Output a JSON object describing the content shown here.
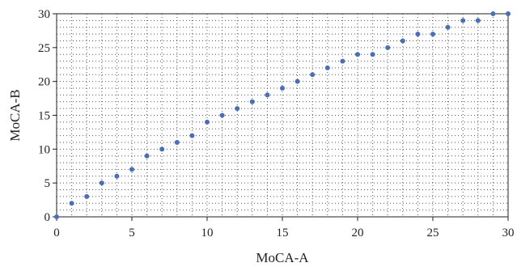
{
  "chart_data": {
    "type": "scatter",
    "xlabel": "MoCA-A",
    "ylabel": "MoCA-B",
    "xlim": [
      0,
      30
    ],
    "ylim": [
      0,
      30
    ],
    "x_ticks": [
      0,
      5,
      10,
      15,
      20,
      25,
      30
    ],
    "y_ticks": [
      0,
      5,
      10,
      15,
      20,
      25,
      30
    ],
    "grid": "dotted",
    "legend": "none",
    "series": [
      {
        "color": "#4a6fb5",
        "points": [
          [
            0,
            0
          ],
          [
            1,
            2
          ],
          [
            2,
            3
          ],
          [
            3,
            5
          ],
          [
            4,
            6
          ],
          [
            5,
            7
          ],
          [
            6,
            9
          ],
          [
            7,
            10
          ],
          [
            8,
            11
          ],
          [
            9,
            12
          ],
          [
            10,
            14
          ],
          [
            11,
            15
          ],
          [
            12,
            16
          ],
          [
            13,
            17
          ],
          [
            14,
            18
          ],
          [
            15,
            19
          ],
          [
            16,
            20
          ],
          [
            17,
            21
          ],
          [
            18,
            22
          ],
          [
            19,
            23
          ],
          [
            20,
            24
          ],
          [
            21,
            24
          ],
          [
            22,
            25
          ],
          [
            23,
            26
          ],
          [
            24,
            27
          ],
          [
            25,
            27
          ],
          [
            26,
            28
          ],
          [
            27,
            29
          ],
          [
            28,
            29
          ],
          [
            29,
            30
          ],
          [
            30,
            30
          ]
        ]
      }
    ]
  }
}
